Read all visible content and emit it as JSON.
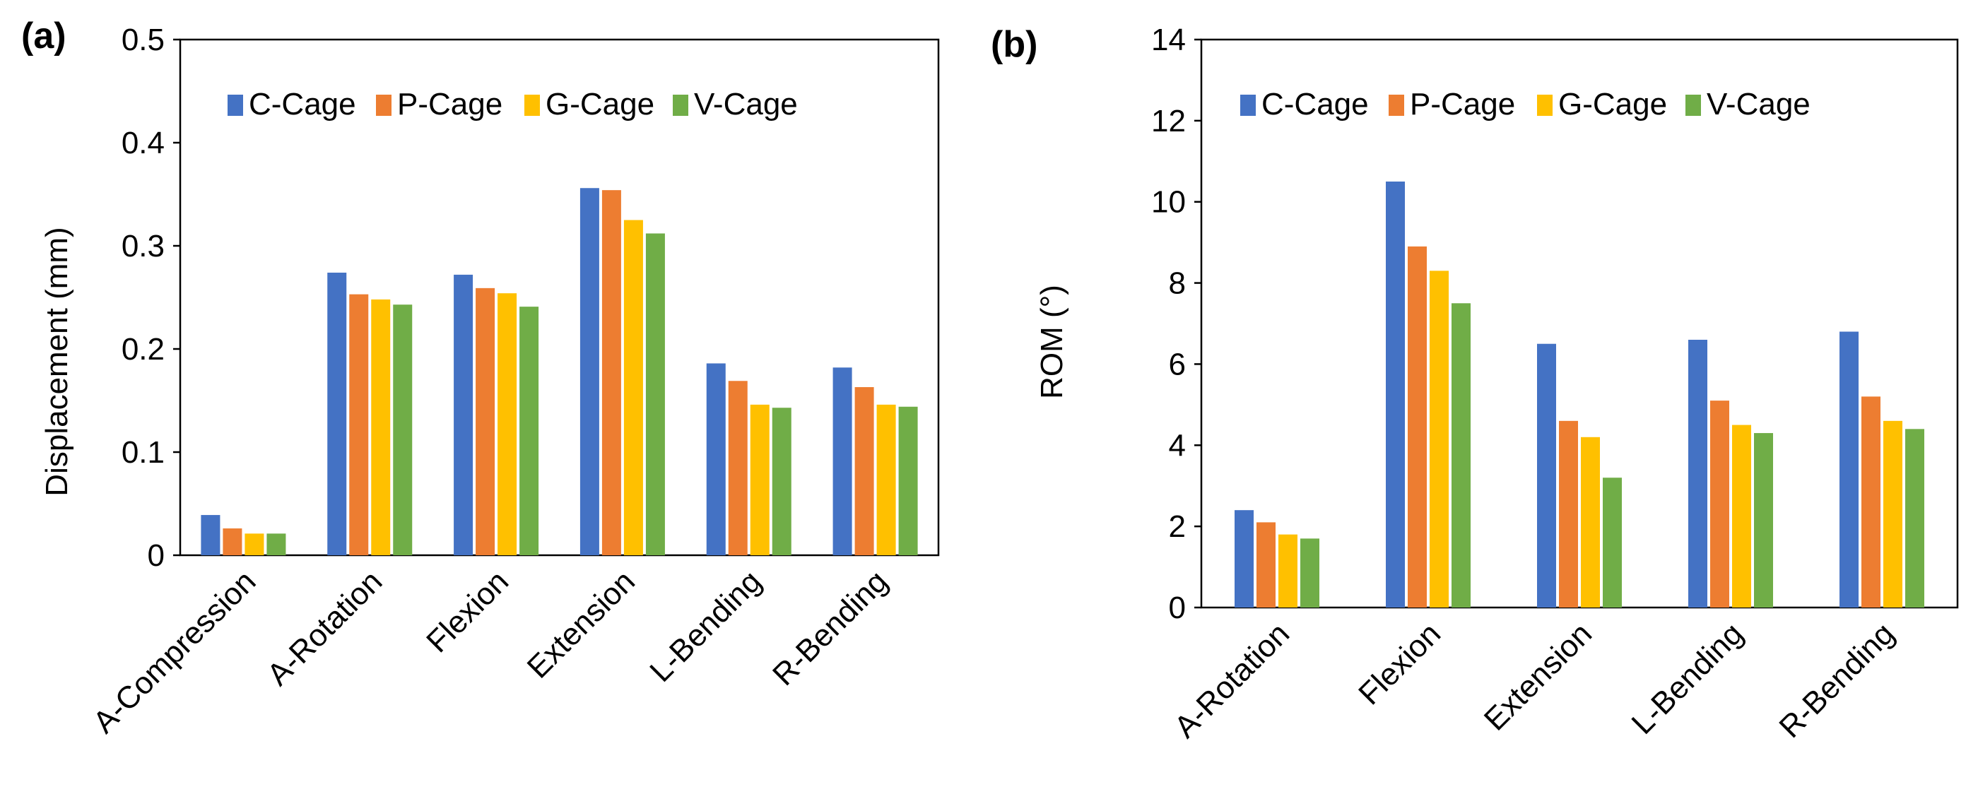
{
  "chart_data": [
    {
      "type": "bar",
      "panel_label": "(a)",
      "title": "",
      "xlabel": "",
      "ylabel": "Displacement (mm)",
      "ylim": [
        0,
        0.5
      ],
      "yticks": [
        "0",
        "0.1",
        "0.2",
        "0.3",
        "0.4",
        "0.5"
      ],
      "yticks_values": [
        0,
        0.1,
        0.2,
        0.3,
        0.4,
        0.5
      ],
      "categories": [
        "A-Compression",
        "A-Rotation",
        "Flexion",
        "Extension",
        "L-Bending",
        "R-Bending"
      ],
      "legend_position": "top",
      "series": [
        {
          "name": "C-Cage",
          "color": "#4472C4",
          "values": [
            0.039,
            0.274,
            0.272,
            0.356,
            0.186,
            0.182
          ]
        },
        {
          "name": "P-Cage",
          "color": "#ED7D31",
          "values": [
            0.026,
            0.253,
            0.259,
            0.354,
            0.169,
            0.163
          ]
        },
        {
          "name": "G-Cage",
          "color": "#FFC000",
          "values": [
            0.021,
            0.248,
            0.254,
            0.325,
            0.146,
            0.146
          ]
        },
        {
          "name": "V-Cage",
          "color": "#70AD47",
          "values": [
            0.021,
            0.243,
            0.241,
            0.312,
            0.143,
            0.144
          ]
        }
      ]
    },
    {
      "type": "bar",
      "panel_label": "(b)",
      "title": "",
      "xlabel": "",
      "ylabel": "ROM (°)",
      "ylim": [
        0,
        14
      ],
      "yticks": [
        "0",
        "2",
        "4",
        "6",
        "8",
        "10",
        "12",
        "14"
      ],
      "yticks_values": [
        0,
        2,
        4,
        6,
        8,
        10,
        12,
        14
      ],
      "categories": [
        "A-Rotation",
        "Flexion",
        "Extension",
        "L-Bending",
        "R-Bending"
      ],
      "legend_position": "top",
      "series": [
        {
          "name": "C-Cage",
          "color": "#4472C4",
          "values": [
            2.4,
            10.5,
            6.5,
            6.6,
            6.8
          ]
        },
        {
          "name": "P-Cage",
          "color": "#ED7D31",
          "values": [
            2.1,
            8.9,
            4.6,
            5.1,
            5.2
          ]
        },
        {
          "name": "G-Cage",
          "color": "#FFC000",
          "values": [
            1.8,
            8.3,
            4.2,
            4.5,
            4.6
          ]
        },
        {
          "name": "V-Cage",
          "color": "#70AD47",
          "values": [
            1.7,
            7.5,
            3.2,
            4.3,
            4.4
          ]
        }
      ]
    }
  ]
}
